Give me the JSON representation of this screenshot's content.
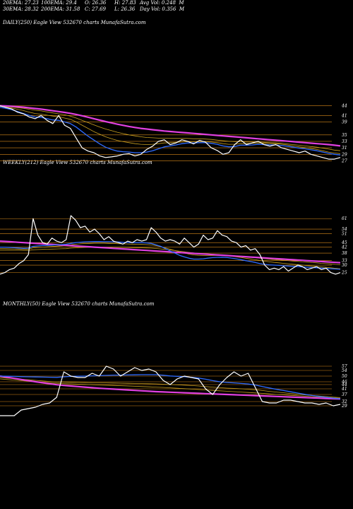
{
  "header": {
    "ema20": "20EMA: 27.23",
    "ema100": "100EMA: 29.4",
    "open": "O: 26.36",
    "high": "H: 27.83",
    "avgvol": "Avg Vol: 0.248  M",
    "ema30": "30EMA: 28.32",
    "ema200": "200EMA: 31.58",
    "close": "C: 27.69",
    "low": "L: 26.36",
    "dayvol": "Day Vol: 0.356  M"
  },
  "panels": [
    {
      "label": "DAILY(250) Eagle  View  532670  charts MunafaSutra.com"
    },
    {
      "label": "WEEKLY(212) Eagle  View  532670  charts MunafaSutra.com"
    },
    {
      "label": "MONTHLY(50) Eagle  View  532670  charts MunafaSutra.com"
    }
  ],
  "colors": {
    "background": "#000000",
    "gridline": "#d98a1a",
    "price": "#ffffff",
    "ema_fast": "#2f6bff",
    "ema_long": "#e040e0",
    "ema_mid": "#c8a020"
  },
  "chart_data": [
    {
      "type": "line",
      "title": "DAILY(250) Eagle  View  532670  charts MunafaSutra.com",
      "yticks": [
        "44",
        "41",
        "39",
        "35",
        "33",
        "31",
        "29",
        "27"
      ],
      "ylim": [
        26,
        45
      ],
      "series": [
        {
          "role": "price",
          "color": "#ffffff",
          "values": [
            44,
            43.5,
            43,
            42,
            41.5,
            40.5,
            40,
            41,
            39.5,
            38.5,
            41,
            38,
            37,
            34,
            31,
            30,
            29.5,
            28.5,
            28,
            28.2,
            28.5,
            29,
            29.2,
            28.5,
            29,
            30.5,
            31.5,
            33,
            33.5,
            32,
            32.5,
            33.5,
            33,
            32.2,
            33.3,
            32.8,
            31,
            30.2,
            29,
            29.5,
            32,
            33.5,
            32,
            32.5,
            33,
            32,
            31.5,
            32,
            31,
            30.5,
            30,
            29.5,
            30,
            29,
            28.5,
            28,
            27.5,
            27.5,
            28
          ]
        },
        {
          "role": "ema20",
          "color": "#2f6bff",
          "values": [
            43.5,
            43.2,
            42.8,
            42.2,
            41.6,
            41,
            40.5,
            40.4,
            40,
            39.6,
            39.5,
            39,
            38.5,
            37.4,
            36,
            34.6,
            33.4,
            32.2,
            31.2,
            30.5,
            30,
            29.8,
            29.7,
            29.5,
            29.5,
            29.7,
            30.1,
            30.7,
            31.3,
            31.6,
            31.9,
            32.3,
            32.5,
            32.5,
            32.6,
            32.6,
            32.4,
            32.1,
            31.6,
            31.3,
            31.4,
            31.8,
            31.8,
            31.9,
            32.1,
            32,
            31.9,
            31.9,
            31.7,
            31.5,
            31.2,
            30.9,
            30.7,
            30.4,
            30.1,
            29.7,
            29.3,
            29,
            28.8
          ]
        },
        {
          "role": "ema30",
          "color": "#c8a020",
          "values": [
            43.8,
            43.6,
            43.3,
            42.9,
            42.5,
            42,
            41.6,
            41.4,
            41.1,
            40.8,
            40.6,
            40.2,
            39.8,
            39,
            38,
            37,
            36,
            35.2,
            34.4,
            33.8,
            33.3,
            32.9,
            32.6,
            32.3,
            32.1,
            32,
            32.1,
            32.3,
            32.5,
            32.6,
            32.7,
            32.8,
            32.9,
            32.9,
            32.9,
            32.9,
            32.8,
            32.6,
            32.3,
            32.1,
            32.1,
            32.3,
            32.3,
            32.4,
            32.5,
            32.4,
            32.3,
            32.3,
            32.1,
            31.9,
            31.6,
            31.3,
            31.1,
            30.8,
            30.5,
            30.1,
            29.7,
            29.4,
            29.2
          ]
        },
        {
          "role": "ema100",
          "color": "#c8a020",
          "values": [
            43.9,
            43.8,
            43.6,
            43.4,
            43.2,
            42.9,
            42.6,
            42.4,
            42.1,
            41.8,
            41.5,
            41.2,
            40.8,
            40.2,
            39.5,
            38.8,
            38.1,
            37.4,
            36.8,
            36.3,
            35.8,
            35.4,
            35,
            34.7,
            34.4,
            34.2,
            34.1,
            34,
            34,
            33.9,
            33.9,
            33.9,
            33.9,
            33.8,
            33.8,
            33.7,
            33.6,
            33.4,
            33.2,
            33,
            32.9,
            32.9,
            32.8,
            32.8,
            32.8,
            32.7,
            32.6,
            32.5,
            32.4,
            32.2,
            32,
            31.8,
            31.6,
            31.4,
            31.2,
            30.9,
            30.6,
            30.3,
            30.1
          ]
        },
        {
          "role": "ema200",
          "color": "#e040e0",
          "values": [
            44,
            43.95,
            43.85,
            43.7,
            43.55,
            43.35,
            43.15,
            42.95,
            42.7,
            42.45,
            42.2,
            41.95,
            41.65,
            41.3,
            40.9,
            40.45,
            40,
            39.55,
            39.1,
            38.7,
            38.3,
            37.95,
            37.6,
            37.3,
            37,
            36.8,
            36.6,
            36.4,
            36.2,
            36.05,
            35.9,
            35.75,
            35.6,
            35.45,
            35.3,
            35.15,
            35,
            34.85,
            34.7,
            34.55,
            34.4,
            34.25,
            34.1,
            33.95,
            33.8,
            33.65,
            33.5,
            33.35,
            33.2,
            33.05,
            32.9,
            32.75,
            32.6,
            32.45,
            32.3,
            32.15,
            32,
            31.8,
            31.6
          ]
        }
      ]
    },
    {
      "type": "line",
      "title": "WEEKLY(212) Eagle  View  532670  charts MunafaSutra.com",
      "yticks": [
        "61",
        "54",
        "51",
        "45",
        "42",
        "38",
        "33",
        "30",
        "25"
      ],
      "ylim": [
        22,
        63
      ],
      "series": [
        {
          "role": "price",
          "color": "#ffffff",
          "values": [
            24,
            25,
            27,
            28,
            31,
            33,
            37,
            61,
            50,
            45,
            44,
            48,
            46,
            45,
            47,
            63,
            60,
            55,
            56,
            52,
            54,
            51,
            47,
            49,
            46,
            45,
            44,
            46,
            45,
            47,
            46,
            47,
            55,
            52,
            48,
            46,
            47,
            46,
            44,
            48,
            45,
            42,
            44,
            50,
            47,
            48,
            53,
            50,
            49,
            46,
            45,
            42,
            43,
            40,
            41,
            37,
            30,
            27,
            28,
            27,
            29,
            26,
            28,
            30,
            29,
            27,
            28,
            29,
            27,
            28,
            25,
            24,
            25
          ]
        },
        {
          "role": "ema20",
          "color": "#2f6bff",
          "values": [
            42,
            42,
            41.8,
            41.6,
            41.4,
            41.2,
            41.3,
            42.5,
            42.8,
            43,
            43.1,
            43.3,
            43.5,
            43.7,
            43.9,
            44.5,
            45,
            45.3,
            45.5,
            45.6,
            45.7,
            45.7,
            45.6,
            45.6,
            45.5,
            45.4,
            45.2,
            45.1,
            45,
            45,
            45,
            44.8,
            44.5,
            43.5,
            42.5,
            41,
            39.5,
            38,
            36.5,
            35.5,
            34.6,
            34,
            34,
            34.2,
            34.7,
            35,
            35.2,
            35.3,
            35.1,
            34.7,
            34.2,
            33.6,
            33,
            32.4,
            31.8,
            31,
            30.5,
            30.2,
            30,
            29.8,
            29.6,
            29.4,
            29.2,
            29,
            28.8,
            28.6,
            28.4,
            28.2,
            28,
            27.8,
            27.6,
            27.4,
            27.2
          ]
        },
        {
          "role": "ema30",
          "color": "#c8a020",
          "values": [
            41,
            41,
            40.9,
            40.8,
            40.7,
            40.6,
            40.7,
            41.5,
            41.8,
            42,
            42.2,
            42.4,
            42.6,
            42.8,
            43,
            43.5,
            43.9,
            44.2,
            44.4,
            44.5,
            44.6,
            44.6,
            44.6,
            44.5,
            44.4,
            44.3,
            44.2,
            44.1,
            44,
            43.9,
            43.8,
            43.7,
            43.5,
            43,
            42.3,
            41.5,
            40.6,
            39.7,
            38.8,
            38,
            37.3,
            36.8,
            36.5,
            36.4,
            36.4,
            36.4,
            36.4,
            36.4,
            36.2,
            35.9,
            35.5,
            35.1,
            34.6,
            34.1,
            33.6,
            33.1,
            32.6,
            32.2,
            31.8,
            31.5,
            31.2,
            30.9,
            30.6,
            30.3,
            30,
            29.7,
            29.4,
            29.1,
            28.8,
            28.5,
            28.2,
            27.9,
            27.6
          ]
        },
        {
          "role": "ema100",
          "color": "#c8a020",
          "values": [
            40,
            40,
            40,
            39.9,
            39.9,
            39.8,
            39.8,
            40.2,
            40.4,
            40.5,
            40.6,
            40.7,
            40.8,
            40.9,
            41,
            41.3,
            41.5,
            41.7,
            41.8,
            41.9,
            42,
            42,
            42,
            42,
            42,
            41.9,
            41.9,
            41.8,
            41.7,
            41.6,
            41.5,
            41.4,
            41.3,
            41.1,
            40.8,
            40.5,
            40.1,
            39.7,
            39.3,
            38.9,
            38.5,
            38.1,
            37.8,
            37.6,
            37.4,
            37.2,
            37,
            36.8,
            36.6,
            36.4,
            36.1,
            35.8,
            35.5,
            35.2,
            34.9,
            34.6,
            34.3,
            34,
            33.7,
            33.5,
            33.2,
            33,
            32.7,
            32.5,
            32.2,
            32,
            31.7,
            31.5,
            31.2,
            31,
            30.8,
            30.5,
            30.3
          ]
        },
        {
          "role": "ema200",
          "color": "#e040e0",
          "values": [
            46,
            45.8,
            45.6,
            45.4,
            45.2,
            45,
            44.8,
            44.6,
            44.4,
            44.2,
            44,
            43.8,
            43.6,
            43.4,
            43.2,
            43,
            42.8,
            42.6,
            42.4,
            42.2,
            42,
            41.8,
            41.6,
            41.4,
            41.2,
            41,
            40.8,
            40.6,
            40.4,
            40.2,
            40,
            39.8,
            39.6,
            39.4,
            39.2,
            39,
            38.8,
            38.6,
            38.4,
            38.2,
            38,
            37.8,
            37.6,
            37.4,
            37.2,
            37,
            36.8,
            36.6,
            36.4,
            36.2,
            36,
            35.8,
            35.6,
            35.4,
            35.2,
            35,
            34.8,
            34.6,
            34.4,
            34.2,
            34,
            33.8,
            33.6,
            33.4,
            33.2,
            33,
            32.8,
            32.6,
            32.4,
            32.2,
            32,
            31.8,
            31.6
          ]
        }
      ]
    },
    {
      "type": "line",
      "title": "MONTHLY(50) Eagle  View  532670  charts MunafaSutra.com",
      "yticks": [
        "57",
        "54",
        "50",
        "46",
        "44",
        "41",
        "37",
        "32",
        "29"
      ],
      "ylim": [
        20,
        60
      ],
      "series": [
        {
          "role": "price",
          "color": "#ffffff",
          "values": [
            22,
            22,
            22,
            26,
            27,
            28,
            30,
            31,
            35,
            53,
            50,
            49,
            49,
            52,
            50,
            57,
            55,
            50,
            53,
            56,
            54,
            55,
            53,
            47,
            44,
            48,
            50,
            49,
            48,
            41,
            37,
            44,
            49,
            53,
            50,
            52,
            42,
            32,
            31,
            31,
            33,
            33,
            32,
            31,
            31,
            30,
            31,
            29,
            30
          ]
        },
        {
          "role": "ema20",
          "color": "#2f6bff",
          "values": [
            50,
            49.9,
            49.8,
            49.6,
            49.5,
            49.4,
            49.3,
            49.2,
            49.1,
            49.5,
            49.8,
            49.9,
            50,
            50.2,
            50.3,
            50.5,
            50.7,
            50.7,
            50.8,
            50.9,
            51,
            51,
            51,
            50.6,
            50.1,
            49.8,
            49.6,
            49.2,
            48.6,
            47.8,
            46.8,
            46,
            45.5,
            45.2,
            44.8,
            44.4,
            43.7,
            42.6,
            41.6,
            40.6,
            39.8,
            38.9,
            38,
            37.1,
            36.3,
            35.6,
            35,
            34.4,
            33.8
          ]
        },
        {
          "role": "ema30",
          "color": "#c8a020",
          "values": [
            49,
            48.6,
            48.2,
            47.8,
            47.4,
            47,
            46.6,
            46.2,
            45.8,
            45.7,
            45.6,
            45.5,
            45.4,
            45.3,
            45.2,
            45.2,
            45.1,
            45,
            44.9,
            44.8,
            44.7,
            44.6,
            44.5,
            44.3,
            44,
            43.8,
            43.6,
            43.3,
            43,
            42.6,
            42.2,
            41.8,
            41.5,
            41.3,
            41,
            40.7,
            40.3,
            39.8,
            39.2,
            38.7,
            38.2,
            37.7,
            37.2,
            36.7,
            36.3,
            35.9,
            35.5,
            35.1,
            34.8
          ]
        },
        {
          "role": "ema100",
          "color": "#c8a020",
          "values": [
            48,
            47.6,
            47.2,
            46.8,
            46.4,
            46,
            45.6,
            45.2,
            44.9,
            44.7,
            44.5,
            44.3,
            44.1,
            43.9,
            43.7,
            43.6,
            43.4,
            43.2,
            43,
            42.8,
            42.6,
            42.4,
            42.2,
            42,
            41.7,
            41.4,
            41.1,
            40.8,
            40.5,
            40.2,
            39.9,
            39.6,
            39.3,
            39,
            38.7,
            38.4,
            38.1,
            37.8,
            37.4,
            37,
            36.7,
            36.4,
            36.1,
            35.8,
            35.5,
            35.2,
            34.9,
            34.6,
            34.3
          ]
        },
        {
          "role": "ema200",
          "color": "#e040e0",
          "values": [
            50,
            49.2,
            48.4,
            47.6,
            46.8,
            46,
            45.3,
            44.6,
            43.9,
            43.4,
            43,
            42.6,
            42.2,
            41.8,
            41.4,
            41.1,
            40.8,
            40.5,
            40.2,
            39.9,
            39.6,
            39.3,
            39,
            38.8,
            38.6,
            38.4,
            38.2,
            38,
            37.8,
            37.6,
            37.4,
            37.2,
            37,
            36.8,
            36.6,
            36.4,
            36.2,
            36,
            35.8,
            35.6,
            35.4,
            35.2,
            35,
            34.8,
            34.6,
            34.4,
            34.2,
            34,
            33.8
          ]
        }
      ]
    }
  ]
}
